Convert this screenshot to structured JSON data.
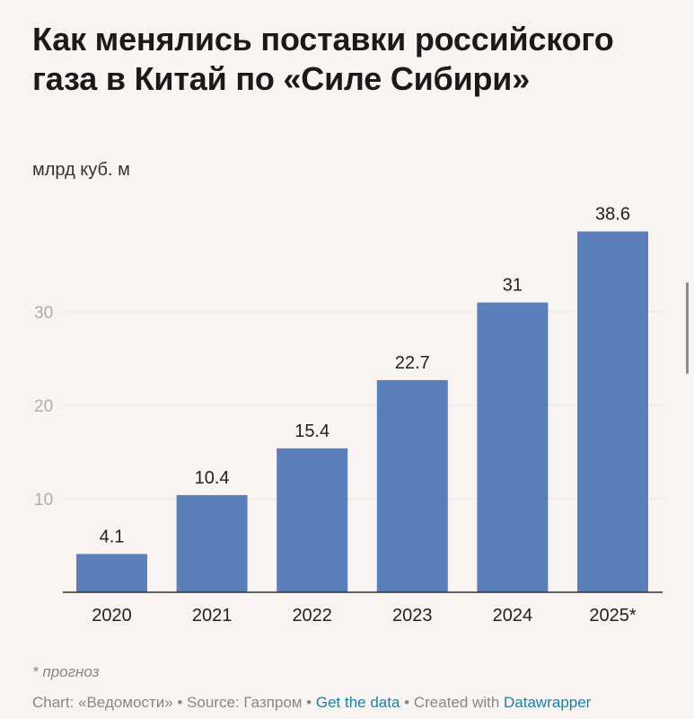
{
  "title": "Как менялись поставки российского газа в Китай по «Силе Сибири»",
  "subtitle": "млрд куб. м",
  "note": "* прогноз",
  "footer": {
    "prefix": "Chart: «Ведомости» • Source: Газпром • ",
    "get_data": "Get the data",
    "middle": " • Created with ",
    "datawrapper": "Datawrapper"
  },
  "colors": {
    "bar": "#5b7fbb",
    "grid": "#e8e3e0",
    "axis": "#333333",
    "link": "#1d81a2"
  },
  "chart_data": {
    "type": "bar",
    "categories": [
      "2020",
      "2021",
      "2022",
      "2023",
      "2024",
      "2025*"
    ],
    "values": [
      4.1,
      10.4,
      15.4,
      22.7,
      31,
      38.6
    ],
    "value_labels": [
      "4.1",
      "10.4",
      "15.4",
      "22.7",
      "31",
      "38.6"
    ],
    "ylabel": "млрд куб. м",
    "ylim": [
      0,
      40
    ],
    "yticks": [
      10,
      20,
      30
    ],
    "ytick_labels": [
      "10",
      "20",
      "30"
    ],
    "grid": true,
    "legend": "none"
  }
}
